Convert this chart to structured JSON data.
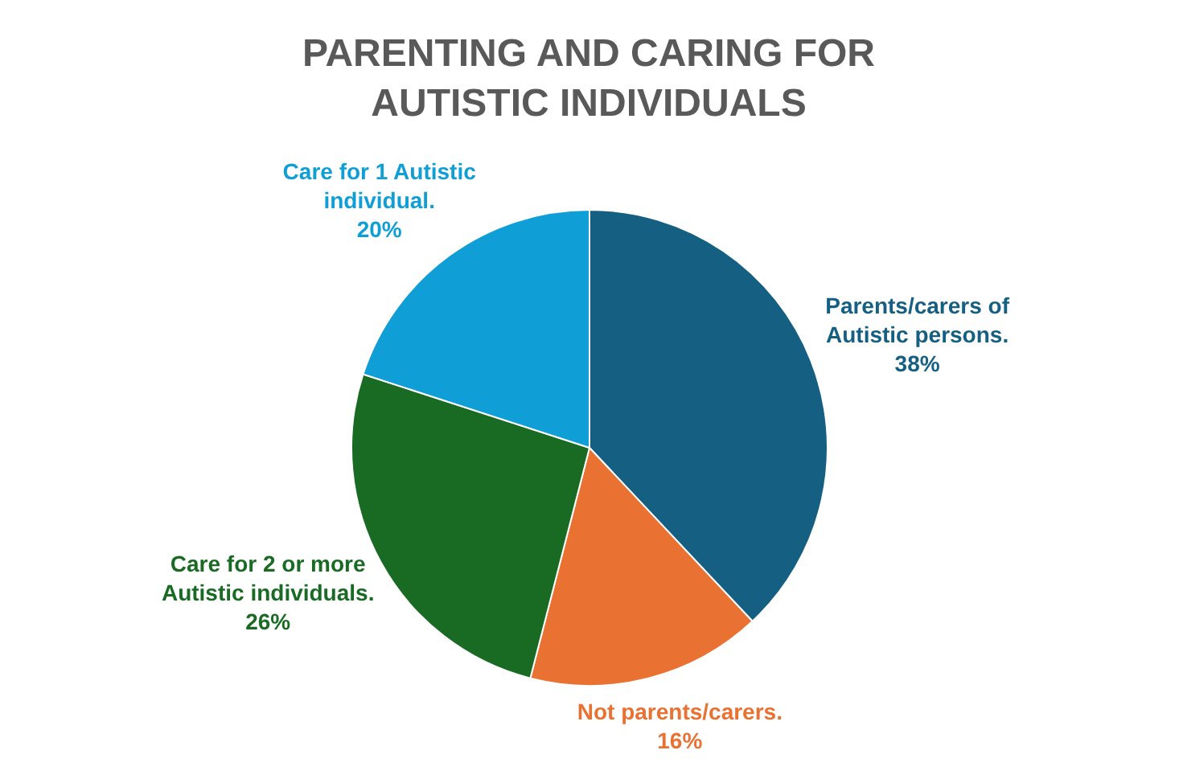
{
  "chart_data": {
    "type": "pie",
    "title": "PARENTING AND CARING FOR AUTISTIC INDIVIDUALS",
    "categories": [
      "Parents/carers of Autistic persons.",
      "Not parents/carers.",
      "Care for 2 or more Autistic individuals.",
      "Care for 1 Autistic individual."
    ],
    "values": [
      38,
      16,
      26,
      20
    ],
    "colors": [
      "#155f82",
      "#e97132",
      "#196b24",
      "#0f9ed5"
    ],
    "value_labels": [
      "38%",
      "16%",
      "26%",
      "20%"
    ],
    "legend": false
  }
}
